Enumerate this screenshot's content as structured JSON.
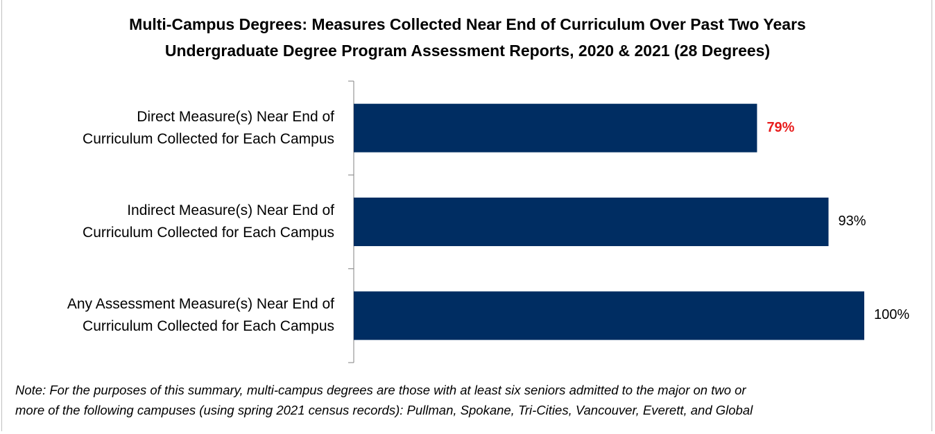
{
  "chart_data": {
    "type": "bar",
    "orientation": "horizontal",
    "title": "Multi-Campus Degrees: Measures Collected Near End of Curriculum Over Past Two Years",
    "subtitle": "Undergraduate Degree Program Assessment Reports, 2020 & 2021 (28 Degrees)",
    "categories": [
      "Direct Measure(s) Near End of\nCurriculum Collected for Each Campus",
      "Indirect Measure(s) Near End of\nCurriculum Collected for Each Campus",
      "Any Assessment Measure(s) Near End of\nCurriculum Collected for Each Campus"
    ],
    "values": [
      79,
      93,
      100
    ],
    "value_labels": [
      "79%",
      "93%",
      "100%"
    ],
    "value_label_colors": [
      "#e81c1c",
      "#000000",
      "#000000"
    ],
    "value_label_bold": [
      true,
      false,
      false
    ],
    "color": "#002d62",
    "xlim": [
      0,
      100
    ],
    "note": "Note: For the purposes of this summary, multi-campus degrees are those with at least six seniors admitted to the major on two or\nmore of the following campuses (using spring 2021 census records): Pullman, Spokane, Tri-Cities, Vancouver, Everett, and Global"
  }
}
